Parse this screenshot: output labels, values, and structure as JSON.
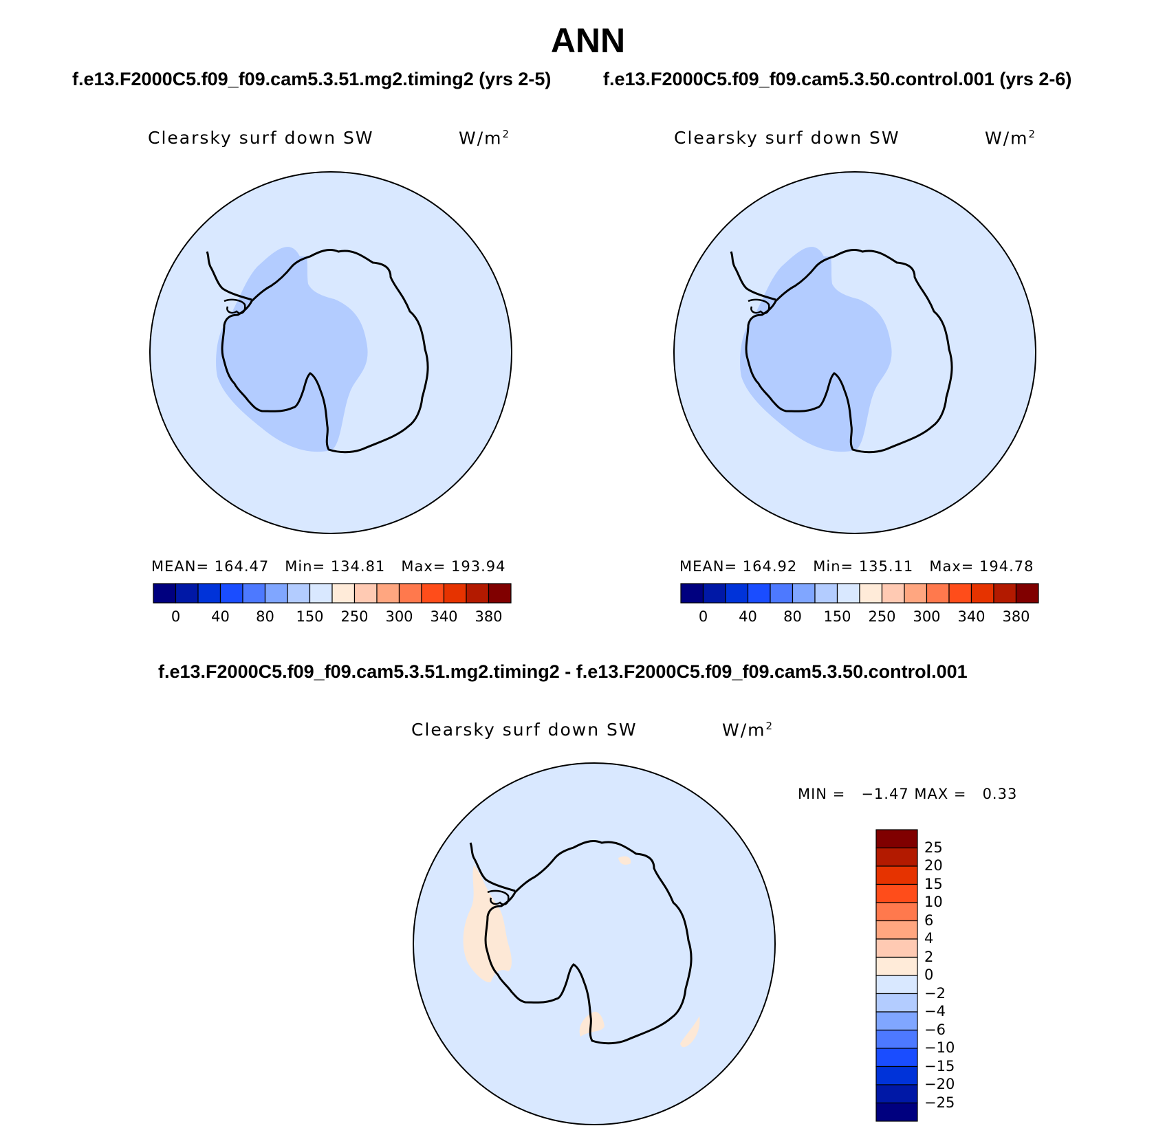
{
  "title": "ANN",
  "case_header": {
    "test": "f.e13.F2000C5.f09_f09.cam5.3.51.mg2.timing2 (yrs 2-5)",
    "control": "f.e13.F2000C5.f09_f09.cam5.3.50.control.001 (yrs 2-6)"
  },
  "diff_header": "f.e13.F2000C5.f09_f09.cam5.3.51.mg2.timing2 - f.e13.F2000C5.f09_f09.cam5.3.50.control.001",
  "variable_label": "Clearsky surf down SW",
  "units": {
    "base": "W/m",
    "exp": "2"
  },
  "panels": [
    {
      "stats": {
        "mean_label": "MEAN=",
        "mean": "164.47",
        "min_label": "Min=",
        "min": "134.81",
        "max_label": "Max=",
        "max": "193.94"
      }
    },
    {
      "stats": {
        "mean_label": "MEAN=",
        "mean": "164.92",
        "min_label": "Min=",
        "min": "135.11",
        "max_label": "Max=",
        "max": "194.78"
      }
    }
  ],
  "diff_stats": {
    "min_label": "MIN =",
    "min": "−1.47",
    "max_label": "MAX =",
    "max": "0.33"
  },
  "abs_colorbar": {
    "colors": [
      "#00007f",
      "#0018a6",
      "#0033d9",
      "#1a4dff",
      "#4d79ff",
      "#80a6ff",
      "#b3ccff",
      "#d9e8ff",
      "#ffebd9",
      "#ffcab3",
      "#ffa680",
      "#ff794d",
      "#ff4d1a",
      "#e63300",
      "#b31a00",
      "#800000"
    ],
    "tick_labels": [
      "0",
      "40",
      "80",
      "150",
      "250",
      "300",
      "340",
      "380"
    ]
  },
  "diff_colorbar": {
    "colors": [
      "#800000",
      "#b31a00",
      "#e63300",
      "#ff4d1a",
      "#ff794d",
      "#ffa680",
      "#ffcab3",
      "#ffebd9",
      "#d9e8ff",
      "#b3ccff",
      "#80a6ff",
      "#4d79ff",
      "#1a4dff",
      "#0033d9",
      "#0018a6",
      "#00007f"
    ],
    "tick_labels": [
      "25",
      "20",
      "15",
      "10",
      "6",
      "4",
      "2",
      "0",
      "−2",
      "−4",
      "−6",
      "−10",
      "−15",
      "−20",
      "−25"
    ]
  },
  "map_colors": {
    "ocean": "#d9e8ff",
    "low_band": "#b3ccff",
    "positive_diff": "#fde8d6",
    "coast": "#000000"
  }
}
